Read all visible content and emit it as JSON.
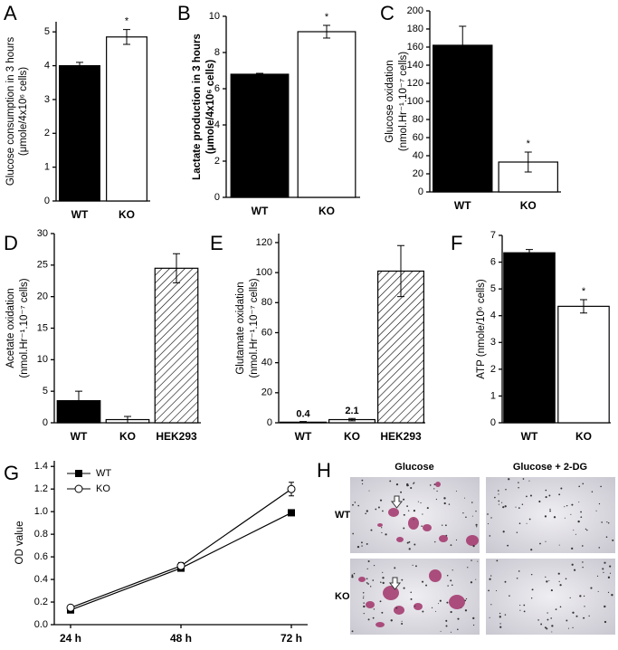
{
  "chart_data": [
    {
      "type": "bar",
      "label": "A",
      "ylabel": [
        "Glucose consumption in 3 hours",
        "(μmole/4x10⁶ cells)"
      ],
      "categories": [
        "WT",
        "KO"
      ],
      "values": [
        4.0,
        4.85
      ],
      "errors": [
        0.1,
        0.22
      ],
      "fills": [
        "#000000",
        "#ffffff"
      ],
      "hatched": [
        false,
        false
      ],
      "significant": [
        false,
        true
      ],
      "significance_mark": "*",
      "ylim": [
        0,
        5.3
      ],
      "yticks": [
        0,
        1,
        2,
        3,
        4,
        5
      ]
    },
    {
      "type": "bar",
      "label": "B",
      "ylabel": [
        "Lactate production in 3 hours",
        "(μmole/4x10⁶ cells)"
      ],
      "categories": [
        "WT",
        "KO"
      ],
      "values": [
        6.8,
        9.15
      ],
      "errors": [
        0.05,
        0.35
      ],
      "fills": [
        "#000000",
        "#ffffff"
      ],
      "hatched": [
        false,
        false
      ],
      "significant": [
        false,
        true
      ],
      "significance_mark": "*",
      "ylim": [
        0,
        10
      ],
      "yticks": [
        0,
        2,
        4,
        6,
        8,
        10
      ]
    },
    {
      "type": "bar",
      "label": "C",
      "ylabel": [
        "Glucose oxidation",
        "(nmol.Hr⁻¹.10⁻⁷ cells)"
      ],
      "categories": [
        "WT",
        "KO"
      ],
      "values": [
        162,
        33
      ],
      "errors": [
        21,
        11
      ],
      "fills": [
        "#000000",
        "#ffffff"
      ],
      "hatched": [
        false,
        false
      ],
      "significant": [
        false,
        true
      ],
      "significance_mark": "*",
      "ylim": [
        0,
        200
      ],
      "yticks": [
        0,
        20,
        40,
        60,
        80,
        100,
        120,
        140,
        160,
        180,
        200
      ]
    },
    {
      "type": "bar",
      "label": "D",
      "ylabel": [
        "Acetate oxidation",
        "(nmol.Hr⁻¹.10⁻⁷ cells)"
      ],
      "categories": [
        "WT",
        "KO",
        "HEK293"
      ],
      "values": [
        3.5,
        0.5,
        24.5
      ],
      "errors": [
        1.5,
        0.5,
        2.3
      ],
      "fills": [
        "#000000",
        "#ffffff",
        "#ffffff"
      ],
      "hatched": [
        false,
        false,
        true
      ],
      "ylim": [
        0,
        30
      ],
      "yticks": [
        0,
        5,
        10,
        15,
        20,
        25,
        30
      ]
    },
    {
      "type": "bar",
      "label": "E",
      "ylabel": [
        "Glutamate oxidation",
        "(nmol.Hr⁻¹.10⁻⁷ cells)"
      ],
      "categories": [
        "WT",
        "KO",
        "HEK293"
      ],
      "values": [
        0.4,
        2.1,
        101
      ],
      "errors": [
        0.4,
        0.8,
        17
      ],
      "value_labels_shown": [
        true,
        true,
        false
      ],
      "fills": [
        "#ffffff",
        "#ffffff",
        "#ffffff"
      ],
      "hatched": [
        false,
        false,
        true
      ],
      "ylim": [
        0,
        126
      ],
      "yticks": [
        0,
        20,
        40,
        60,
        80,
        100,
        120
      ]
    },
    {
      "type": "bar",
      "label": "F",
      "ylabel": [
        "ATP (nmole/10⁶ cells)"
      ],
      "categories": [
        "WT",
        "KO"
      ],
      "values": [
        6.35,
        4.35
      ],
      "errors": [
        0.12,
        0.25
      ],
      "fills": [
        "#000000",
        "#ffffff"
      ],
      "hatched": [
        false,
        false
      ],
      "significant": [
        false,
        true
      ],
      "significance_mark": "*",
      "ylim": [
        0,
        7
      ],
      "yticks": [
        0,
        1,
        2,
        3,
        4,
        5,
        6,
        7
      ]
    },
    {
      "type": "line",
      "label": "G",
      "ylabel": [
        "OD value"
      ],
      "categories": [
        "24 h",
        "48 h",
        "72 h"
      ],
      "series": [
        {
          "name": "WT",
          "color": "#000000",
          "marker": "square",
          "filled": true,
          "values": [
            0.13,
            0.5,
            0.99
          ],
          "errors": [
            0.015,
            0.02,
            0.02
          ]
        },
        {
          "name": "KO",
          "color": "#000000",
          "marker": "circle",
          "filled": false,
          "values": [
            0.15,
            0.52,
            1.2
          ],
          "errors": [
            0.015,
            0.03,
            0.06
          ]
        }
      ],
      "legend": "upper left",
      "ylim": [
        0,
        1.45
      ],
      "yticks": [
        {
          "value": 0,
          "label": "0.0"
        },
        0.2,
        0.4,
        0.6,
        0.8,
        {
          "value": 1,
          "label": "1.0"
        },
        1.2,
        1.4
      ]
    }
  ],
  "image_panel": {
    "label": "H",
    "columns": [
      "Glucose",
      "Glucose + 2-DG"
    ],
    "rows": [
      "WT",
      "KO"
    ]
  }
}
